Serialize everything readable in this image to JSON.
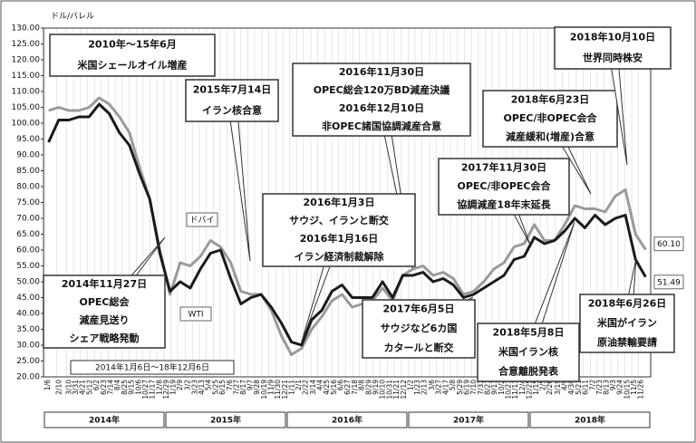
{
  "chart_data": {
    "type": "line",
    "y_unit": "ドル/バレル",
    "period_label": "2014年1月6日〜18年12月6日",
    "years": [
      "2014年",
      "2015年",
      "2016年",
      "2017年",
      "2018年"
    ],
    "x": [
      "2014-01",
      "2014-02",
      "2014-03",
      "2014-04",
      "2014-05",
      "2014-06",
      "2014-07",
      "2014-08",
      "2014-09",
      "2014-10",
      "2014-11",
      "2014-12",
      "2015-01",
      "2015-02",
      "2015-03",
      "2015-04",
      "2015-05",
      "2015-06",
      "2015-07",
      "2015-08",
      "2015-09",
      "2015-10",
      "2015-11",
      "2015-12",
      "2016-01",
      "2016-02",
      "2016-03",
      "2016-04",
      "2016-05",
      "2016-06",
      "2016-07",
      "2016-08",
      "2016-09",
      "2016-10",
      "2016-11",
      "2016-12",
      "2017-01",
      "2017-02",
      "2017-03",
      "2017-04",
      "2017-05",
      "2017-06",
      "2017-07",
      "2017-08",
      "2017-09",
      "2017-10",
      "2017-11",
      "2017-12",
      "2018-01",
      "2018-02",
      "2018-03",
      "2018-04",
      "2018-05",
      "2018-06",
      "2018-07",
      "2018-08",
      "2018-09",
      "2018-10",
      "2018-11",
      "2018-12"
    ],
    "xtick_labels": [
      "1/6",
      "2/10",
      "3/10",
      "3/31",
      "4/21",
      "5/12",
      "6/2",
      "6/23",
      "7/14",
      "8/4",
      "8/25",
      "9/15",
      "10/6",
      "10/27",
      "11/17",
      "12/8",
      "12/29",
      "1/19",
      "2/9",
      "3/2",
      "3/23",
      "4/13",
      "5/4",
      "5/25",
      "6/15",
      "7/6",
      "7/27",
      "8/17",
      "9/7",
      "9/28",
      "10/19",
      "11/9",
      "11/30",
      "12/21",
      "1/11",
      "2/1",
      "2/22",
      "3/14",
      "4/4",
      "4/25",
      "5/16",
      "6/6",
      "6/27",
      "7/18",
      "8/8",
      "8/29",
      "9/19",
      "10/10",
      "10/31",
      "11/21",
      "12/12",
      "1/2",
      "1/23",
      "2/13",
      "3/6",
      "3/27",
      "4/17",
      "5/8",
      "5/29",
      "6/19",
      "7/10",
      "7/31",
      "8/21",
      "9/11",
      "10/2",
      "10/23",
      "11/13",
      "12/4",
      "12/25",
      "1/15",
      "2/5",
      "2/26",
      "3/19",
      "4/9",
      "4/30",
      "5/21",
      "6/11",
      "7/2",
      "7/23",
      "8/13",
      "9/3",
      "9/24",
      "10/15",
      "11/5",
      "11/26"
    ],
    "series": [
      {
        "name": "ドバイ",
        "color": "#9a9a9a",
        "end_label": "60.10",
        "values": [
          104,
          105,
          104,
          104,
          105,
          108,
          106,
          102,
          97,
          86,
          76,
          60,
          46,
          56,
          55,
          58,
          63,
          61,
          56,
          47,
          46,
          46,
          41,
          33,
          27,
          29,
          35,
          39,
          44,
          46,
          42,
          43,
          44,
          48,
          44,
          52,
          54,
          55,
          52,
          53,
          51,
          46,
          47,
          50,
          54,
          56,
          61,
          62,
          68,
          63,
          63,
          68,
          74,
          73,
          73,
          72,
          77,
          79,
          65,
          60.1
        ]
      },
      {
        "name": "WTI",
        "color": "#1a1a1a",
        "end_label": "51.49",
        "values": [
          94,
          101,
          101,
          102,
          102,
          106,
          103,
          97,
          93,
          84,
          76,
          59,
          47,
          50,
          48,
          54,
          59,
          60,
          51,
          43,
          45,
          46,
          42,
          37,
          31,
          30,
          38,
          41,
          47,
          49,
          45,
          45,
          45,
          50,
          45,
          52,
          52,
          53,
          50,
          51,
          49,
          45,
          46,
          48,
          50,
          52,
          57,
          58,
          64,
          62,
          63,
          66,
          70,
          67,
          71,
          68,
          70,
          71,
          57,
          51.49
        ]
      }
    ],
    "ylim": [
      20,
      130
    ],
    "yticks": [
      {
        "value": 20,
        "label": "20.00"
      },
      {
        "value": 25,
        "label": "25.00"
      },
      {
        "value": 30,
        "label": "30.00"
      },
      {
        "value": 35,
        "label": "35.00"
      },
      {
        "value": 40,
        "label": "40.00"
      },
      {
        "value": 45,
        "label": "45.00"
      },
      {
        "value": 50,
        "label": "50.00"
      },
      {
        "value": 55,
        "label": "55.00"
      },
      {
        "value": 60,
        "label": "60.00"
      },
      {
        "value": 65,
        "label": "65.00"
      },
      {
        "value": 70,
        "label": "70.00"
      },
      {
        "value": 75,
        "label": "75.00"
      },
      {
        "value": 80,
        "label": "80.00"
      },
      {
        "value": 85,
        "label": "85.00"
      },
      {
        "value": 90,
        "label": "90.00"
      },
      {
        "value": 95,
        "label": "95.00"
      },
      {
        "value": 100,
        "label": "100.00"
      },
      {
        "value": 105,
        "label": "105.00"
      },
      {
        "value": 110,
        "label": "110.00"
      },
      {
        "value": 115,
        "label": "115.00"
      },
      {
        "value": 120,
        "label": "120.00"
      },
      {
        "value": 125,
        "label": "125.00"
      },
      {
        "value": 130,
        "label": "130.00"
      }
    ],
    "grid": true,
    "annotations": [
      {
        "lines": [
          "2010年〜15年6月",
          "米国シェールオイル増産"
        ]
      },
      {
        "lines": [
          "2015年7月14日",
          "イラン核合意"
        ]
      },
      {
        "lines": [
          "2016年11月30日",
          "OPEC総会120万BD減産決議",
          "2016年12月10日",
          "非OPEC諸国協調減産合意"
        ]
      },
      {
        "lines": [
          "2016年1月3日",
          "サウジ、イランと断交",
          "2016年1月16日",
          "イラン経済制裁解除"
        ]
      },
      {
        "lines": [
          "2014年11月27日",
          "OPEC総会",
          "減産見送り",
          "シェア戦略発動"
        ]
      },
      {
        "lines": [
          "2017年6月5日",
          "サウジなど6カ国",
          "カタールと断交"
        ]
      },
      {
        "lines": [
          "2018年5月8日",
          "米国イラン核",
          "合意離脱発表"
        ]
      },
      {
        "lines": [
          "2017年11月30日",
          "OPEC/非OPEC会合",
          "協調減産18年末延長"
        ]
      },
      {
        "lines": [
          "2018年6月23日",
          "OPEC/非OPEC会合",
          "減産緩和(増産)合意"
        ]
      },
      {
        "lines": [
          "2018年10月10日",
          "世界同時株安"
        ]
      },
      {
        "lines": [
          "2018年6月26日",
          "米国がイラン",
          "原油禁輸要請"
        ]
      }
    ]
  }
}
